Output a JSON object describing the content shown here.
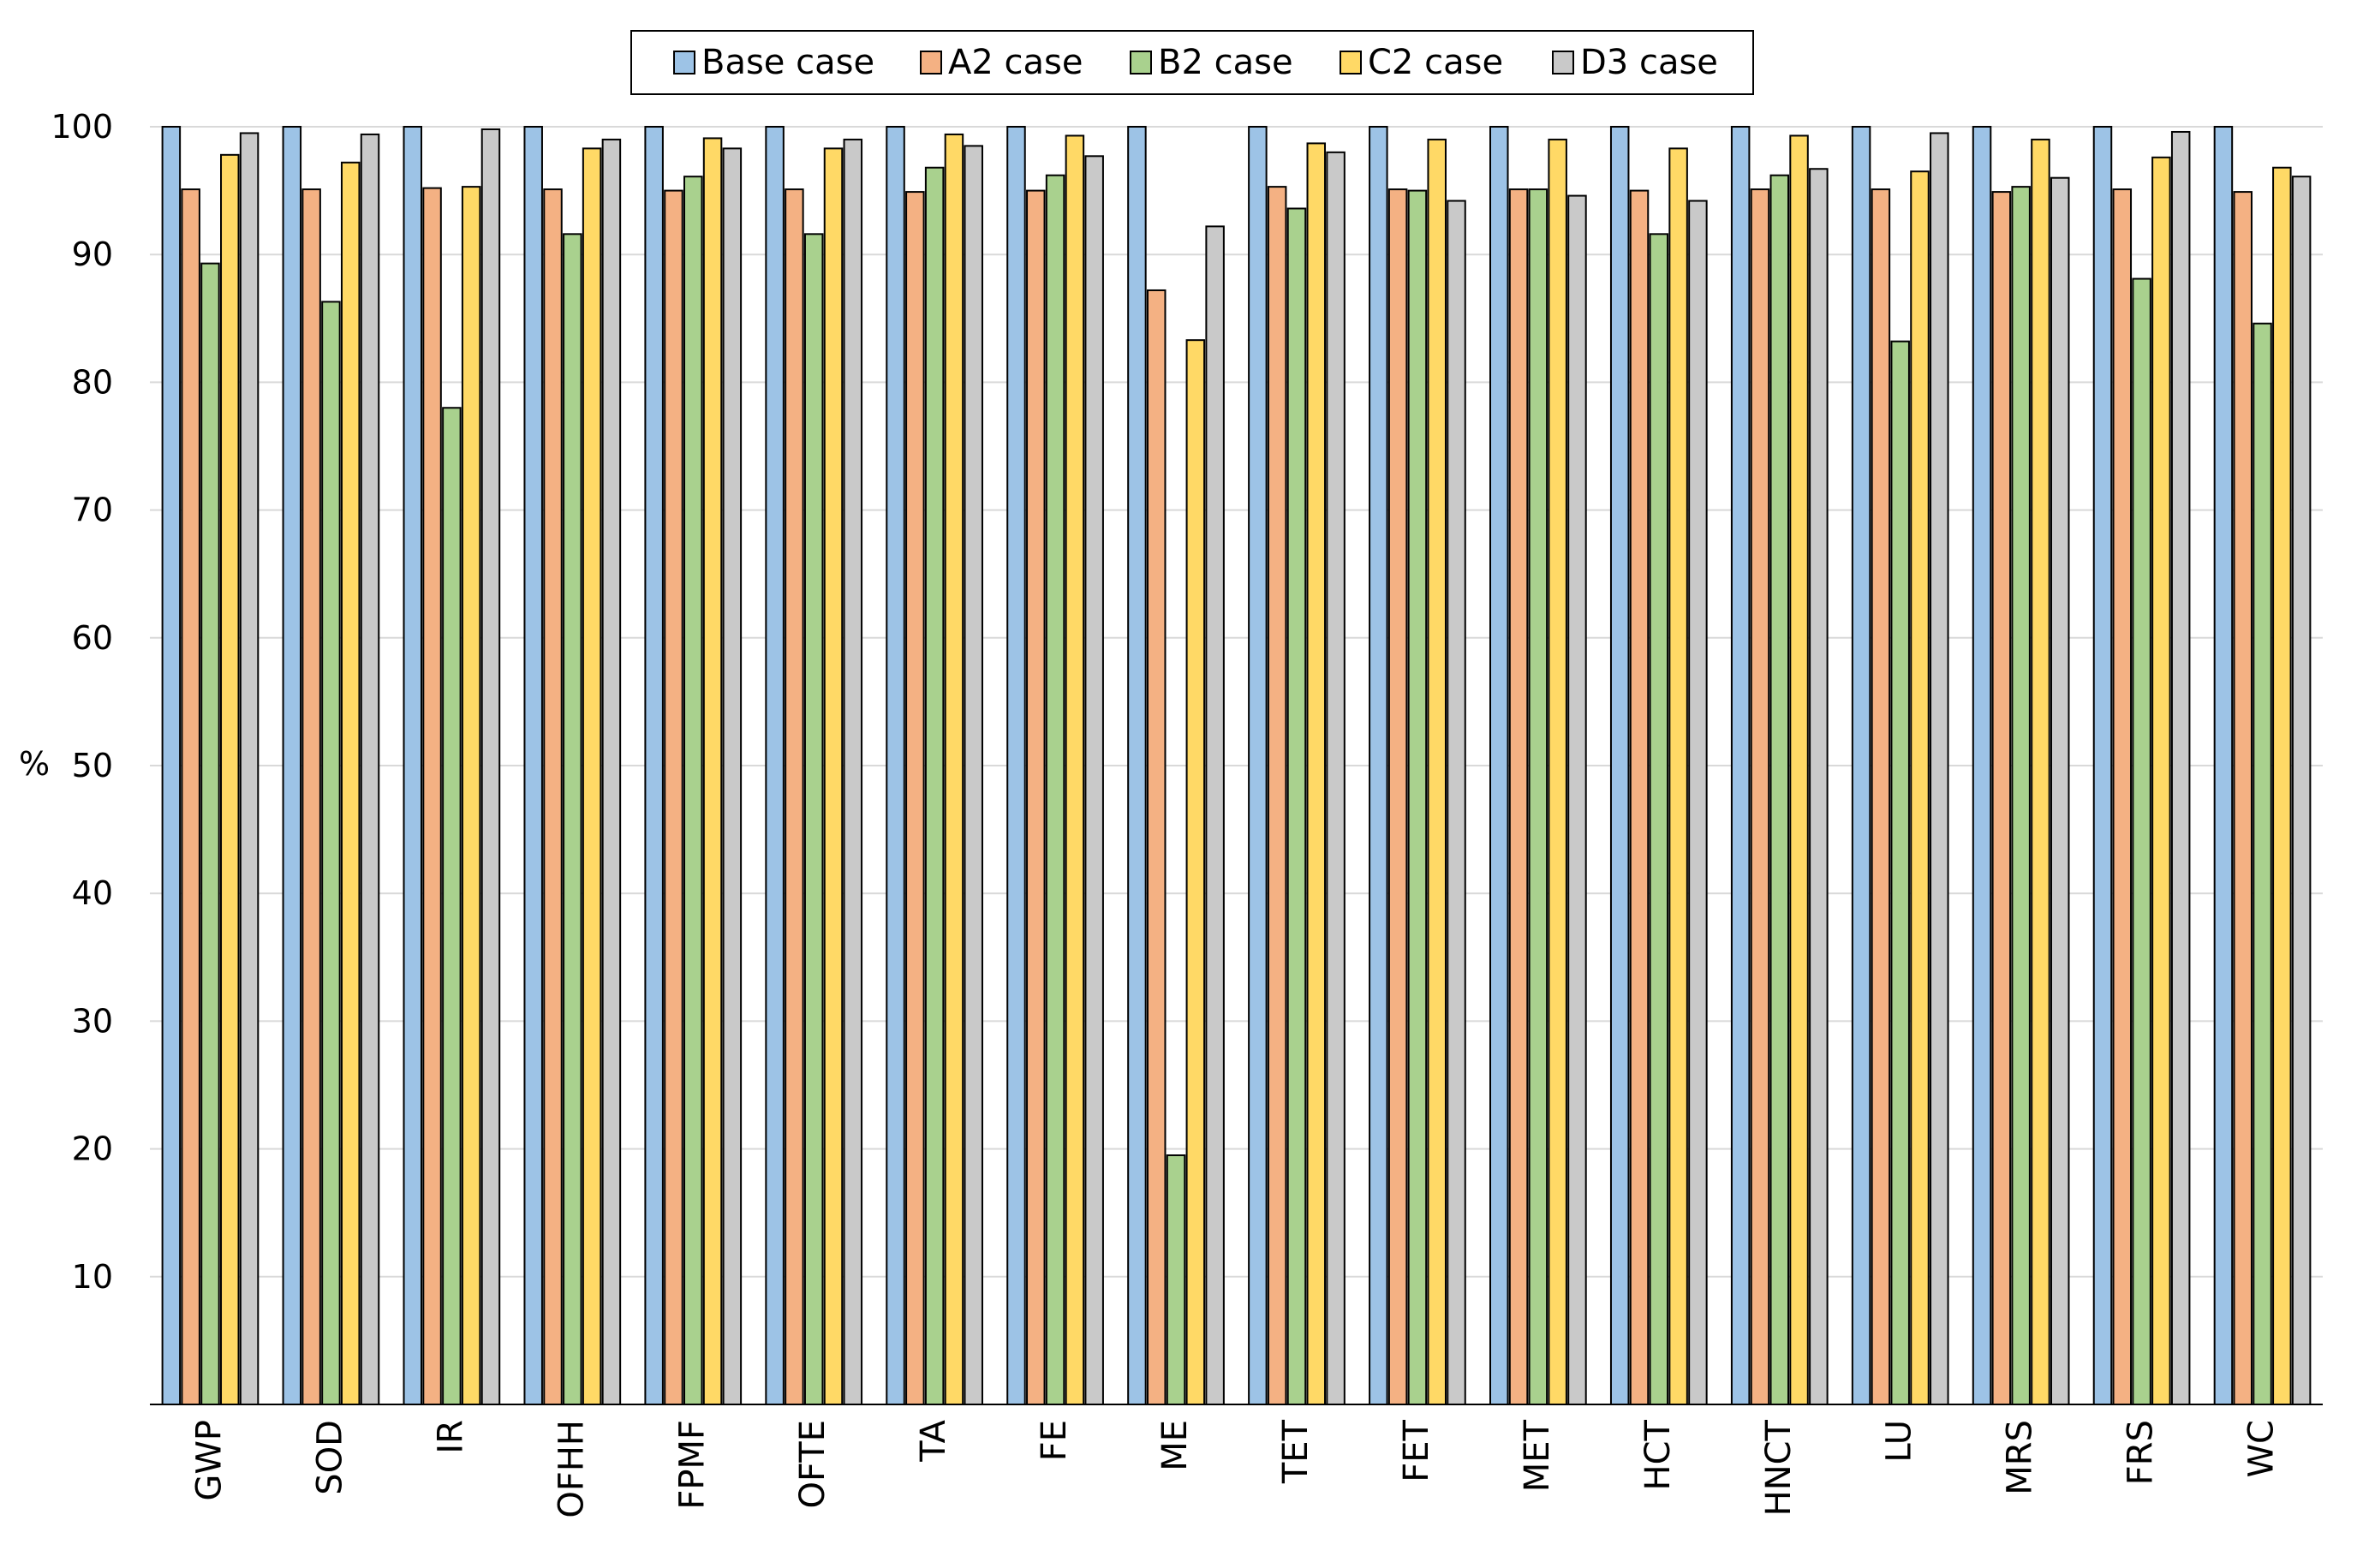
{
  "chart_data": {
    "type": "bar",
    "title": "",
    "xlabel": "",
    "ylabel": "%",
    "ylim": [
      0,
      100
    ],
    "yticks": [
      10,
      20,
      30,
      40,
      50,
      60,
      70,
      80,
      90,
      100
    ],
    "grid": true,
    "legend_position": "top-center",
    "categories": [
      "GWP",
      "SOD",
      "IR",
      "OFHH",
      "FPMF",
      "OFTE",
      "TA",
      "FE",
      "ME",
      "TET",
      "FET",
      "MET",
      "HCT",
      "HNCT",
      "LU",
      "MRS",
      "FRS",
      "WC"
    ],
    "series": [
      {
        "name": "Base case",
        "color": "#9DC3E6",
        "values": [
          100,
          100,
          100,
          100,
          100,
          100,
          100,
          100,
          100,
          100,
          100,
          100,
          100,
          100,
          100,
          100,
          100,
          100
        ]
      },
      {
        "name": "A2 case",
        "color": "#F4B183",
        "values": [
          95.1,
          95.1,
          95.2,
          95.1,
          95.0,
          95.1,
          94.9,
          95.0,
          87.2,
          95.3,
          95.1,
          95.1,
          95.0,
          95.1,
          95.1,
          94.9,
          95.1,
          94.9
        ]
      },
      {
        "name": "B2 case",
        "color": "#A9D18E",
        "values": [
          89.3,
          86.3,
          78.0,
          91.6,
          96.1,
          91.6,
          96.8,
          96.2,
          19.5,
          93.6,
          95.0,
          95.1,
          91.6,
          96.2,
          83.2,
          95.3,
          88.1,
          84.6
        ]
      },
      {
        "name": "C2 case",
        "color": "#FFD966",
        "values": [
          97.8,
          97.2,
          95.3,
          98.3,
          99.1,
          98.3,
          99.4,
          99.3,
          83.3,
          98.7,
          99.0,
          99.0,
          98.3,
          99.3,
          96.5,
          99.0,
          97.6,
          96.8
        ]
      },
      {
        "name": "D3 case",
        "color": "#C9C9C9",
        "values": [
          99.5,
          99.4,
          99.8,
          99.0,
          98.3,
          99.0,
          98.5,
          97.7,
          92.2,
          98.0,
          94.2,
          94.6,
          94.2,
          96.7,
          99.5,
          96.0,
          99.6,
          96.1
        ]
      }
    ]
  }
}
